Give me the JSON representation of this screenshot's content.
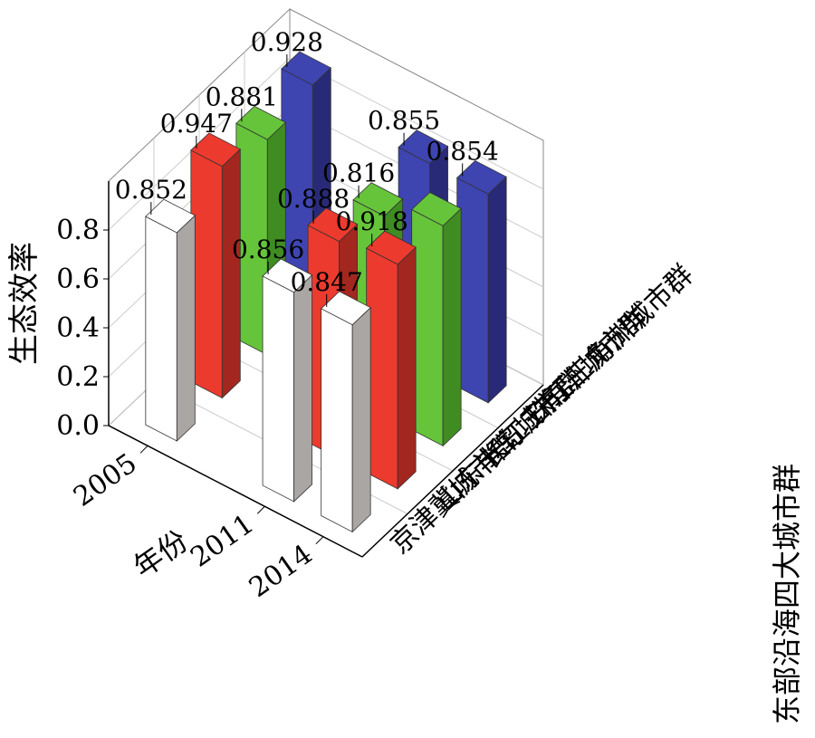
{
  "chart_data": {
    "type": "bar3d",
    "ylabel": "生态效率",
    "xlabel": "年份",
    "series_axis_label": "东部沿海四大城市群",
    "x": [
      2005,
      2011,
      2014
    ],
    "xlim": [
      2003,
      2016
    ],
    "xticks": [
      2005,
      2011,
      2014
    ],
    "ylim": [
      0,
      1
    ],
    "yticks": [
      {
        "value": 0,
        "label": "0.0"
      },
      0.2,
      0.4,
      0.6,
      0.8
    ],
    "grid": true,
    "series": [
      {
        "name": "京津冀城市群",
        "color": "#ffffff",
        "side_color": "#aaa6a4",
        "values": [
          0.852,
          0.856,
          0.847
        ],
        "value_labels": [
          "0.852",
          "0.856",
          "0.847"
        ]
      },
      {
        "name": "山东半岛城市群",
        "color": "#ec3a2e",
        "side_color": "#a3261f",
        "values": [
          0.947,
          0.888,
          0.918
        ],
        "value_labels": [
          "0.947",
          "0.888",
          "0.918"
        ]
      },
      {
        "name": "长江三角洲城市群",
        "color": "#66c43a",
        "side_color": "#3f8d22",
        "values": [
          0.881,
          0.816,
          0.9
        ],
        "value_labels": [
          "0.881",
          "0.816",
          null
        ]
      },
      {
        "name": "珠江三角洲城市群",
        "color": "#3e45b0",
        "side_color": "#282a78",
        "values": [
          0.928,
          0.855,
          0.854
        ],
        "value_labels": [
          "0.928",
          "0.855",
          "0.854"
        ]
      }
    ]
  }
}
